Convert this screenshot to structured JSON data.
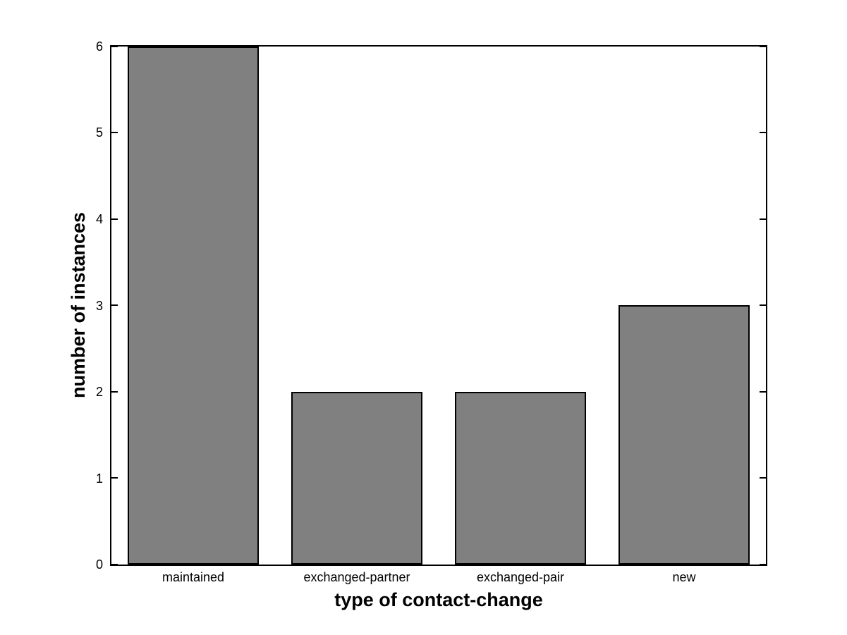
{
  "figure": {
    "background": "#ffffff"
  },
  "chart_data": {
    "type": "bar",
    "categories": [
      "maintained",
      "exchanged-partner",
      "exchanged-pair",
      "new"
    ],
    "values": [
      6,
      2,
      2,
      3
    ],
    "title": "",
    "xlabel": "type of contact-change",
    "ylabel": "number of instances",
    "ylim": [
      0,
      6
    ],
    "yticks": [
      0,
      1,
      2,
      3,
      4,
      5,
      6
    ],
    "bar_width_fraction": 0.8,
    "bar_color": "#808080",
    "bar_edge_color": "#000000",
    "axis_color": "#000000",
    "grid": false,
    "legend": "none",
    "tick_direction": "in",
    "box": true
  }
}
